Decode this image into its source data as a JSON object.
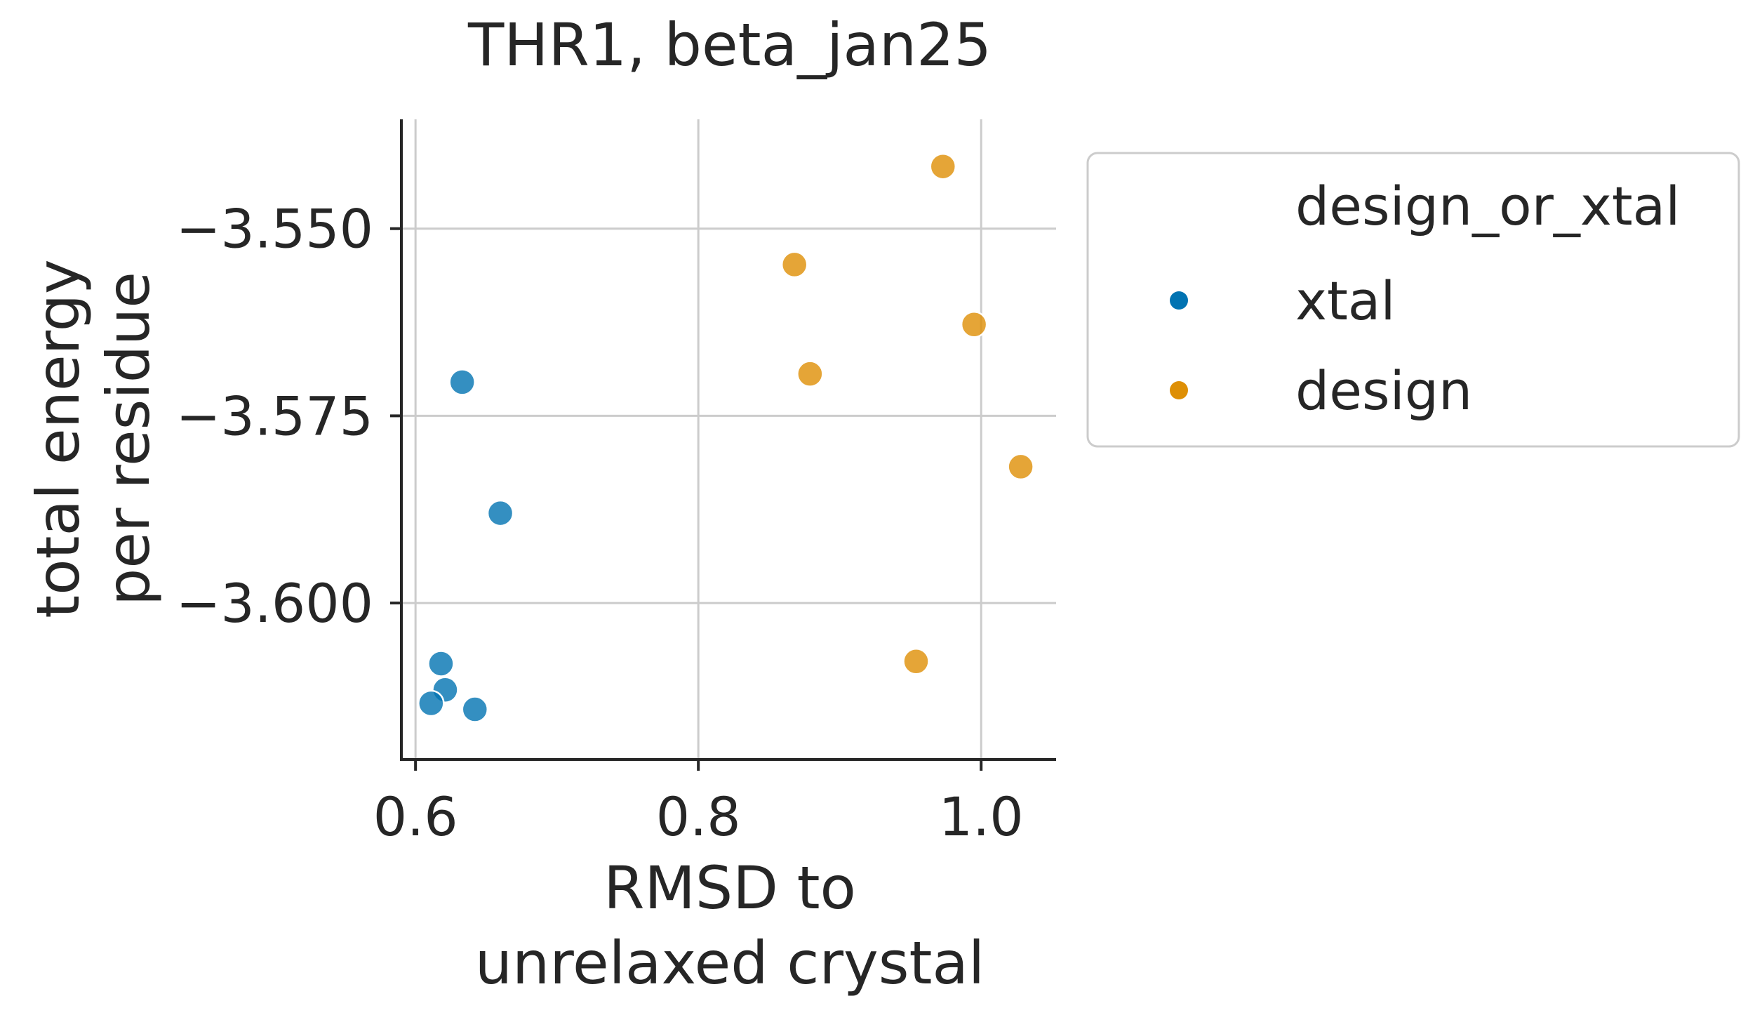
{
  "chart_data": {
    "type": "scatter",
    "title": "THR1, beta_jan25",
    "xlabel_lines": [
      "RMSD to",
      "unrelaxed crystal"
    ],
    "ylabel_lines": [
      "total energy",
      "per residue"
    ],
    "xlim": [
      0.59,
      1.053
    ],
    "ylim": [
      -3.6209,
      -3.5354
    ],
    "x_ticks": [
      0.6,
      0.8,
      1.0
    ],
    "x_tick_labels": [
      "0.6",
      "0.8",
      "1.0"
    ],
    "y_ticks": [
      -3.55,
      -3.575,
      -3.6
    ],
    "y_tick_labels": [
      "−3.550",
      "−3.575",
      "−3.600"
    ],
    "grid": true,
    "legend": {
      "title": "design_or_xtal",
      "placement": "outside-right-top"
    },
    "series": [
      {
        "name": "xtal",
        "color": "#0173b2",
        "points": [
          {
            "x": 0.633,
            "y": -3.5705
          },
          {
            "x": 0.66,
            "y": -3.588
          },
          {
            "x": 0.618,
            "y": -3.6081
          },
          {
            "x": 0.621,
            "y": -3.6116
          },
          {
            "x": 0.611,
            "y": -3.6134
          },
          {
            "x": 0.642,
            "y": -3.6142
          }
        ]
      },
      {
        "name": "design",
        "color": "#de8f05",
        "points": [
          {
            "x": 0.973,
            "y": -3.5417
          },
          {
            "x": 0.868,
            "y": -3.5548
          },
          {
            "x": 0.995,
            "y": -3.5628
          },
          {
            "x": 0.879,
            "y": -3.5694
          },
          {
            "x": 1.028,
            "y": -3.5818
          },
          {
            "x": 0.954,
            "y": -3.6078
          }
        ]
      }
    ]
  }
}
